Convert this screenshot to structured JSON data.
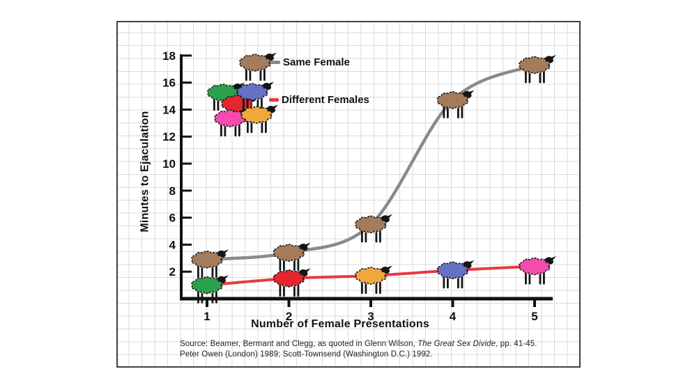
{
  "chart_data": {
    "type": "line",
    "title": "",
    "xlabel": "Number of Female Presentations",
    "ylabel": "Minutes to Ejaculation",
    "x": [
      1,
      2,
      3,
      4,
      5
    ],
    "x_tick_labels": [
      "1",
      "2",
      "3",
      "4",
      "5"
    ],
    "y_ticks": [
      2,
      4,
      6,
      8,
      10,
      12,
      14,
      16,
      18
    ],
    "ylim": [
      0,
      18
    ],
    "grid": "graph-paper",
    "legend_position": "top-left",
    "marker": "sheep",
    "series": [
      {
        "name": "Same Female",
        "line_color": "#8a8a8a",
        "values": [
          2.9,
          3.4,
          5.5,
          14.7,
          17.3
        ],
        "marker_colors": [
          "#a57c5b",
          "#a57c5b",
          "#a57c5b",
          "#a57c5b",
          "#a57c5b"
        ]
      },
      {
        "name": "Different Females",
        "line_color": "#e53a40",
        "values": [
          1.0,
          1.5,
          1.7,
          2.1,
          2.4
        ],
        "marker_colors": [
          "#2aa24c",
          "#e6262f",
          "#f2a73c",
          "#6571c4",
          "#f54bae"
        ]
      }
    ],
    "legend": {
      "items": [
        {
          "label": "Same Female",
          "dash_color": "#8a8a8a",
          "sheep_colors": [
            "#a57c5b"
          ]
        },
        {
          "label": "Different Females",
          "dash_color": "#e53a40",
          "sheep_colors": [
            "#2aa24c",
            "#e6262f",
            "#6571c4",
            "#f54bae",
            "#f2a73c"
          ]
        }
      ]
    },
    "source": {
      "prefix": "Source: Beamer, Bermant and Clegg, as quoted in Glenn Wilson, ",
      "book_title": "The Great Sex Divide",
      "suffix": ", pp. 41-45.",
      "line2": "Peter Owen (London) 1989; Scott-Townsend (Washington D.C.) 1992."
    }
  }
}
